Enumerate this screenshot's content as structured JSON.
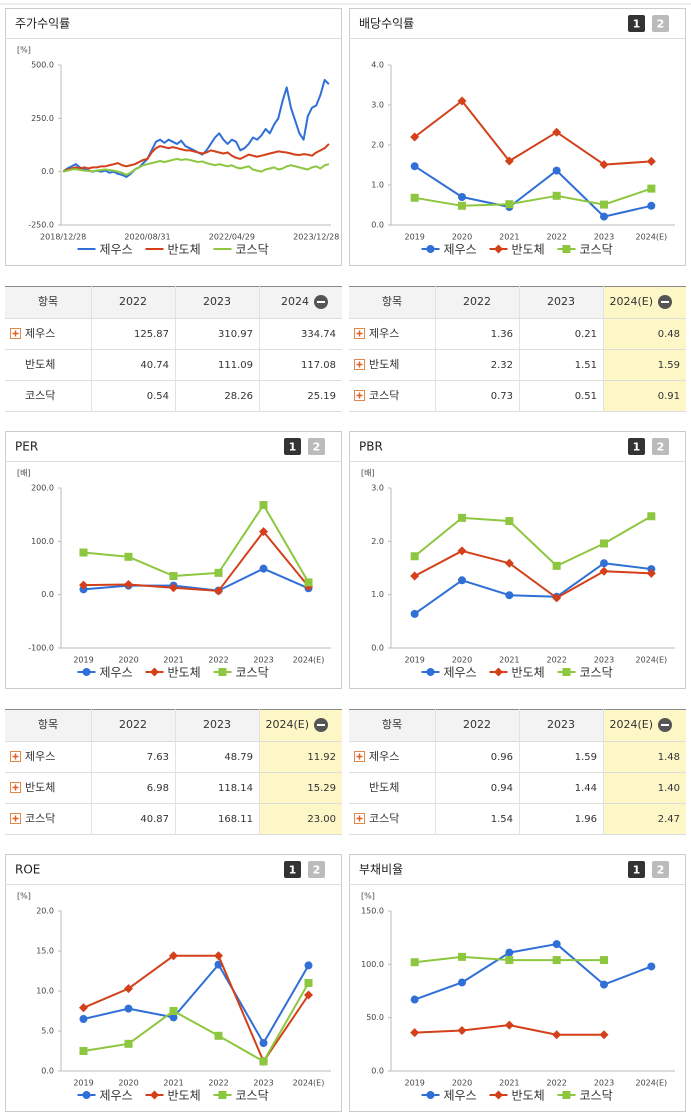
{
  "chart_data": [
    {
      "type": "line",
      "title": "주가수익률",
      "unit": "[%]",
      "categories": [
        "2018/12/28",
        null,
        null,
        null,
        null,
        null,
        null,
        null,
        null,
        null,
        null,
        null,
        null,
        null,
        null,
        null,
        null,
        null,
        null,
        null,
        "2020/08/31",
        null,
        null,
        null,
        null,
        null,
        null,
        null,
        null,
        null,
        null,
        null,
        null,
        null,
        null,
        null,
        null,
        null,
        null,
        null,
        "2022/04/29",
        null,
        null,
        null,
        null,
        null,
        null,
        null,
        null,
        null,
        null,
        null,
        null,
        null,
        null,
        null,
        null,
        null,
        null,
        null,
        "2023/12/28",
        null,
        null,
        null
      ],
      "series": [
        {
          "name": "제우스",
          "color": "#2f6fd6",
          "values": [
            0,
            15,
            25,
            35,
            20,
            10,
            5,
            0,
            5,
            0,
            5,
            -5,
            0,
            -10,
            -15,
            -25,
            -10,
            10,
            20,
            40,
            60,
            100,
            140,
            150,
            135,
            150,
            140,
            130,
            145,
            120,
            110,
            100,
            90,
            80,
            100,
            130,
            160,
            180,
            150,
            130,
            150,
            140,
            100,
            110,
            130,
            160,
            150,
            170,
            200,
            180,
            220,
            250,
            330,
            395,
            300,
            240,
            180,
            150,
            260,
            300,
            310,
            360,
            430,
            410
          ]
        },
        {
          "name": "반도체",
          "color": "#d3401a",
          "values": [
            0,
            10,
            15,
            20,
            15,
            20,
            15,
            20,
            20,
            25,
            25,
            30,
            35,
            40,
            30,
            25,
            30,
            35,
            45,
            55,
            60,
            90,
            110,
            120,
            115,
            110,
            115,
            110,
            105,
            100,
            100,
            95,
            90,
            85,
            90,
            100,
            95,
            90,
            85,
            90,
            75,
            65,
            60,
            70,
            80,
            75,
            70,
            75,
            80,
            85,
            90,
            95,
            92,
            90,
            85,
            80,
            78,
            82,
            80,
            75,
            90,
            100,
            110,
            130
          ]
        },
        {
          "name": "코스닥",
          "color": "#8dc63f",
          "values": [
            0,
            5,
            10,
            12,
            8,
            5,
            3,
            2,
            5,
            8,
            10,
            8,
            5,
            0,
            -5,
            -15,
            -5,
            10,
            20,
            30,
            35,
            40,
            45,
            50,
            45,
            50,
            55,
            60,
            55,
            58,
            55,
            50,
            45,
            48,
            40,
            35,
            30,
            35,
            30,
            25,
            30,
            20,
            15,
            20,
            25,
            10,
            5,
            0,
            10,
            15,
            20,
            10,
            15,
            25,
            30,
            25,
            20,
            15,
            10,
            20,
            25,
            15,
            30,
            35
          ]
        }
      ],
      "ylim": [
        -250,
        500
      ],
      "yticks": [
        {
          "value": -250,
          "label": "-250.0"
        },
        {
          "value": 0,
          "label": "0.0"
        },
        {
          "value": 250,
          "label": "250.0"
        },
        {
          "value": 500,
          "label": "500.0"
        }
      ],
      "grid": false,
      "legend": "bottom"
    },
    {
      "type": "line",
      "title": "배당수익률",
      "pages": [
        "1",
        "2"
      ],
      "categories": [
        "2019",
        "2020",
        "2021",
        "2022",
        "2023",
        "2024(E)"
      ],
      "series": [
        {
          "name": "제우스",
          "color": "#2f6fd6",
          "marker": "circle",
          "values": [
            1.47,
            0.7,
            0.45,
            1.36,
            0.21,
            0.48
          ]
        },
        {
          "name": "반도체",
          "color": "#d3401a",
          "marker": "diamond",
          "values": [
            2.2,
            3.1,
            1.6,
            2.32,
            1.51,
            1.59
          ]
        },
        {
          "name": "코스닥",
          "color": "#8dc63f",
          "marker": "square",
          "values": [
            0.68,
            0.48,
            0.52,
            0.73,
            0.51,
            0.91
          ]
        }
      ],
      "ylim": [
        0,
        4
      ],
      "yticks": [
        {
          "value": 0,
          "label": "0.0"
        },
        {
          "value": 1,
          "label": "1.0"
        },
        {
          "value": 2,
          "label": "2.0"
        },
        {
          "value": 3,
          "label": "3.0"
        },
        {
          "value": 4,
          "label": "4.0"
        }
      ],
      "grid": false,
      "legend": "bottom"
    },
    {
      "type": "line",
      "title": "PER",
      "pages": [
        "1",
        "2"
      ],
      "unit": "[배]",
      "categories": [
        "2019",
        "2020",
        "2021",
        "2022",
        "2023",
        "2024(E)"
      ],
      "series": [
        {
          "name": "제우스",
          "color": "#2f6fd6",
          "marker": "circle",
          "values": [
            10,
            17,
            17,
            7.63,
            48.79,
            11.92
          ]
        },
        {
          "name": "반도체",
          "color": "#d3401a",
          "marker": "diamond",
          "values": [
            18,
            19,
            13,
            6.98,
            118.14,
            15.29
          ]
        },
        {
          "name": "코스닥",
          "color": "#8dc63f",
          "marker": "square",
          "values": [
            79,
            71,
            35,
            40.87,
            168.11,
            23
          ]
        }
      ],
      "ylim": [
        -100,
        200
      ],
      "yticks": [
        {
          "value": -100,
          "label": "-100.0"
        },
        {
          "value": 0,
          "label": "0.0"
        },
        {
          "value": 100,
          "label": "100.0"
        },
        {
          "value": 200,
          "label": "200.0"
        }
      ],
      "grid": false,
      "legend": "bottom"
    },
    {
      "type": "line",
      "title": "PBR",
      "pages": [
        "1",
        "2"
      ],
      "unit": "[배]",
      "categories": [
        "2019",
        "2020",
        "2021",
        "2022",
        "2023",
        "2024(E)"
      ],
      "series": [
        {
          "name": "제우스",
          "color": "#2f6fd6",
          "marker": "circle",
          "values": [
            0.64,
            1.27,
            0.99,
            0.96,
            1.59,
            1.48
          ]
        },
        {
          "name": "반도체",
          "color": "#d3401a",
          "marker": "diamond",
          "values": [
            1.35,
            1.82,
            1.59,
            0.94,
            1.44,
            1.4
          ]
        },
        {
          "name": "코스닥",
          "color": "#8dc63f",
          "marker": "square",
          "values": [
            1.72,
            2.44,
            2.38,
            1.54,
            1.96,
            2.47
          ]
        }
      ],
      "ylim": [
        0,
        3
      ],
      "yticks": [
        {
          "value": 0,
          "label": "0.0"
        },
        {
          "value": 1,
          "label": "1.0"
        },
        {
          "value": 2,
          "label": "2.0"
        },
        {
          "value": 3,
          "label": "3.0"
        }
      ],
      "grid": false,
      "legend": "bottom"
    },
    {
      "type": "line",
      "title": "ROE",
      "pages": [
        "1",
        "2"
      ],
      "unit": "[%]",
      "categories": [
        "2019",
        "2020",
        "2021",
        "2022",
        "2023",
        "2024(E)"
      ],
      "series": [
        {
          "name": "제우스",
          "color": "#2f6fd6",
          "marker": "circle",
          "values": [
            6.5,
            7.8,
            6.7,
            13.3,
            3.5,
            13.2
          ]
        },
        {
          "name": "반도체",
          "color": "#d3401a",
          "marker": "diamond",
          "values": [
            7.9,
            10.3,
            14.4,
            14.4,
            1.2,
            9.5
          ]
        },
        {
          "name": "코스닥",
          "color": "#8dc63f",
          "marker": "square",
          "values": [
            2.5,
            3.4,
            7.5,
            4.4,
            1.2,
            11
          ]
        }
      ],
      "ylim": [
        0,
        20
      ],
      "yticks": [
        {
          "value": 0,
          "label": "0.0"
        },
        {
          "value": 5,
          "label": "5.0"
        },
        {
          "value": 10,
          "label": "10.0"
        },
        {
          "value": 15,
          "label": "15.0"
        },
        {
          "value": 20,
          "label": "20.0"
        }
      ],
      "grid": false,
      "legend": "bottom"
    },
    {
      "type": "line",
      "title": "부채비율",
      "pages": [
        "1",
        "2"
      ],
      "unit": "[%]",
      "categories": [
        "2019",
        "2020",
        "2021",
        "2022",
        "2023",
        "2024(E)"
      ],
      "series": [
        {
          "name": "제우스",
          "color": "#2f6fd6",
          "marker": "circle",
          "values": [
            67,
            83,
            111,
            119,
            81,
            98
          ]
        },
        {
          "name": "반도체",
          "color": "#d3401a",
          "marker": "diamond",
          "values": [
            36,
            38,
            43,
            34,
            34,
            null
          ]
        },
        {
          "name": "코스닥",
          "color": "#8dc63f",
          "marker": "square",
          "values": [
            102,
            107,
            104,
            104,
            104,
            null
          ]
        }
      ],
      "ylim": [
        0,
        150
      ],
      "yticks": [
        {
          "value": 0,
          "label": "0.0"
        },
        {
          "value": 50,
          "label": "50.0"
        },
        {
          "value": 100,
          "label": "100.0"
        },
        {
          "value": 150,
          "label": "150.0"
        }
      ],
      "grid": false,
      "legend": "bottom"
    }
  ],
  "tables": [
    {
      "header": [
        "항목",
        "2022",
        "2023",
        "2024"
      ],
      "rows": [
        {
          "label": "제우스",
          "icon": true,
          "values": [
            "125.87",
            "310.97",
            "334.74"
          ]
        },
        {
          "label": "반도체",
          "icon": false,
          "values": [
            "40.74",
            "111.09",
            "117.08"
          ]
        },
        {
          "label": "코스닥",
          "icon": false,
          "values": [
            "0.54",
            "28.26",
            "25.19"
          ]
        }
      ]
    },
    {
      "header": [
        "항목",
        "2022",
        "2023",
        "2024(E)"
      ],
      "rows": [
        {
          "label": "제우스",
          "icon": true,
          "values": [
            "1.36",
            "0.21",
            "0.48"
          ]
        },
        {
          "label": "반도체",
          "icon": true,
          "values": [
            "2.32",
            "1.51",
            "1.59"
          ]
        },
        {
          "label": "코스닥",
          "icon": true,
          "values": [
            "0.73",
            "0.51",
            "0.91"
          ]
        }
      ]
    },
    {
      "header": [
        "항목",
        "2022",
        "2023",
        "2024(E)"
      ],
      "rows": [
        {
          "label": "제우스",
          "icon": true,
          "values": [
            "7.63",
            "48.79",
            "11.92"
          ]
        },
        {
          "label": "반도체",
          "icon": true,
          "values": [
            "6.98",
            "118.14",
            "15.29"
          ]
        },
        {
          "label": "코스닥",
          "icon": true,
          "values": [
            "40.87",
            "168.11",
            "23.00"
          ]
        }
      ]
    },
    {
      "header": [
        "항목",
        "2022",
        "2023",
        "2024(E)"
      ],
      "rows": [
        {
          "label": "제우스",
          "icon": true,
          "values": [
            "0.96",
            "1.59",
            "1.48"
          ]
        },
        {
          "label": "반도체",
          "icon": false,
          "values": [
            "0.94",
            "1.44",
            "1.40"
          ]
        },
        {
          "label": "코스닥",
          "icon": true,
          "values": [
            "1.54",
            "1.96",
            "2.47"
          ]
        }
      ]
    }
  ]
}
